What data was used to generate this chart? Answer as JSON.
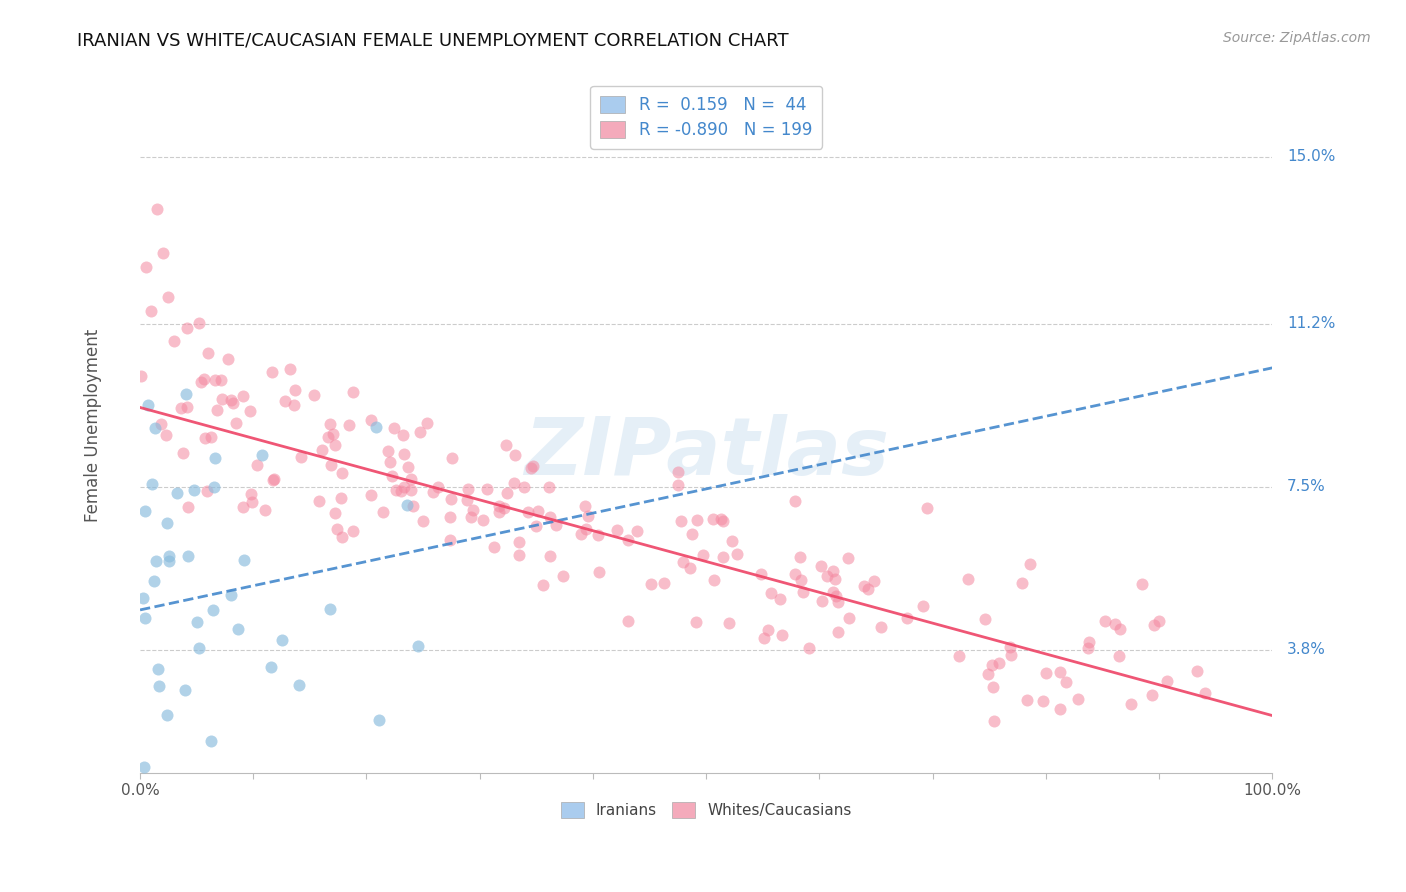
{
  "title": "IRANIAN VS WHITE/CAUCASIAN FEMALE UNEMPLOYMENT CORRELATION CHART",
  "source": "Source: ZipAtlas.com",
  "ylabel": "Female Unemployment",
  "yticks": [
    0.038,
    0.075,
    0.112,
    0.15
  ],
  "ytick_labels": [
    "3.8%",
    "7.5%",
    "11.2%",
    "15.0%"
  ],
  "xmin": 0.0,
  "xmax": 1.0,
  "ymin": 0.01,
  "ymax": 0.168,
  "watermark": "ZIPatlas",
  "iranian_color": "#88bbdd",
  "caucasian_color": "#f488a0",
  "iranian_trend_color": "#4488cc",
  "caucasian_trend_color": "#ee4466",
  "grid_color": "#cccccc",
  "background_color": "#ffffff",
  "iranians_seed": 42,
  "caucasians_seed": 99,
  "iranian_N": 44,
  "caucasian_N": 199,
  "ir_intercept": 0.047,
  "ir_slope": 0.055,
  "cau_intercept": 0.093,
  "cau_slope": -0.07,
  "ir_noise_std": 0.03,
  "cau_noise_std": 0.01
}
